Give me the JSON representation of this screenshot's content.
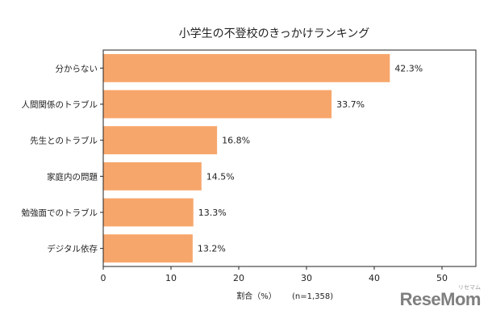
{
  "chart_data": {
    "type": "bar",
    "orientation": "horizontal",
    "title": "小学生の不登校のきっかけランキング",
    "xlabel": "割合（%）",
    "note": "(n=1,358)",
    "categories": [
      "分からない",
      "人間関係のトラブル",
      "先生とのトラブル",
      "家庭内の問題",
      "勉強面でのトラブル",
      "デジタル依存"
    ],
    "values": [
      42.3,
      33.7,
      16.8,
      14.5,
      13.3,
      13.2
    ],
    "value_labels": [
      "42.3%",
      "33.7%",
      "16.8%",
      "14.5%",
      "13.3%",
      "13.2%"
    ],
    "xlim": [
      0,
      55
    ],
    "xticks": [
      0,
      10,
      20,
      30,
      40,
      50
    ],
    "bar_color": "#f7a66b",
    "grid": false
  },
  "branding": {
    "logo_text": "ReseMom",
    "logo_mark": "リセマム"
  }
}
